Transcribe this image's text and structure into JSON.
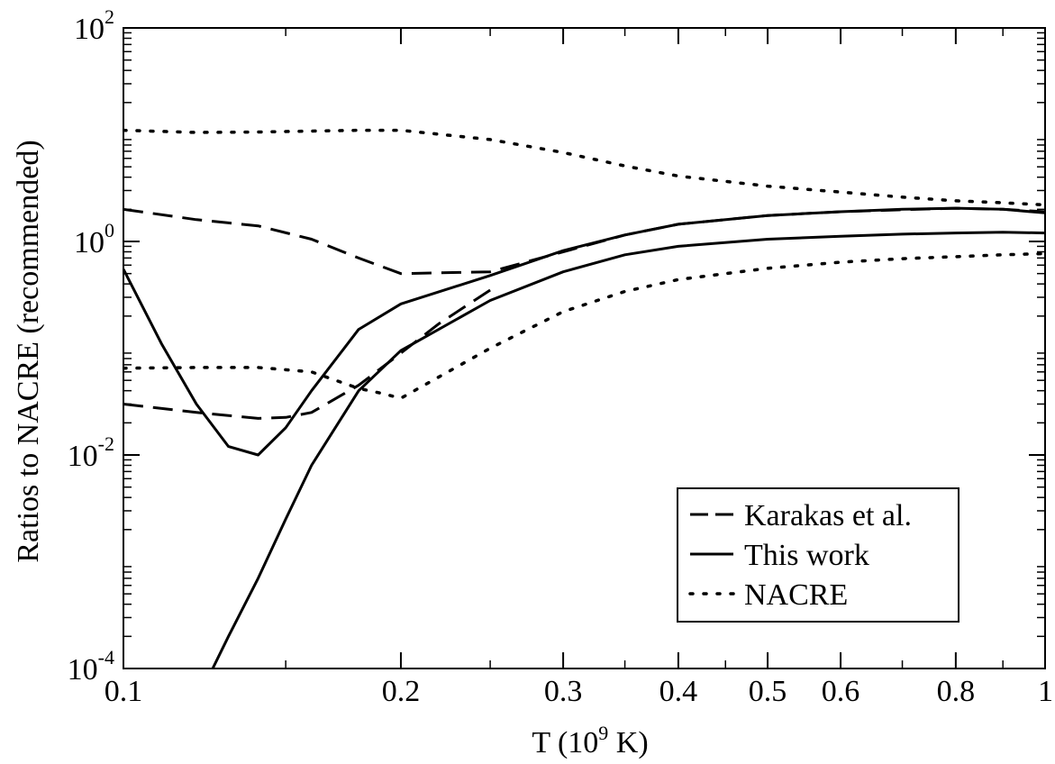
{
  "chart_data": {
    "type": "line",
    "xlabel_base": "T (10",
    "xlabel_exp": "9",
    "xlabel_tail": " K)",
    "ylabel": "Ratios to NACRE (recommended)",
    "x_scale": "log",
    "y_scale": "log",
    "xlim": [
      0.1,
      1
    ],
    "ylim": [
      0.0001,
      100
    ],
    "x_ticks": [
      {
        "value": 0.1,
        "label": "0.1"
      },
      {
        "value": 0.2,
        "label": "0.2"
      },
      {
        "value": 0.3,
        "label": "0.3"
      },
      {
        "value": 0.4,
        "label": "0.4"
      },
      {
        "value": 0.5,
        "label": "0.5"
      },
      {
        "value": 0.6,
        "label": "0.6"
      },
      {
        "value": 0.8,
        "label": "0.8"
      },
      {
        "value": 1,
        "label": "1"
      }
    ],
    "y_ticks": [
      {
        "value": 0.0001,
        "base": "10",
        "exp": "-4"
      },
      {
        "value": 0.01,
        "base": "10",
        "exp": "-2"
      },
      {
        "value": 1,
        "base": "10",
        "exp": "0"
      },
      {
        "value": 100,
        "base": "10",
        "exp": "2"
      }
    ],
    "grid": false,
    "legend_position": "bottom-right",
    "legend": [
      {
        "label": "Karakas et al.",
        "style": "dashed"
      },
      {
        "label": "This work",
        "style": "solid"
      },
      {
        "label": "NACRE",
        "style": "dotted"
      }
    ],
    "series": [
      {
        "legend_index": 0,
        "style": "dashed",
        "x": [
          0.1,
          0.12,
          0.14,
          0.16,
          0.18,
          0.2,
          0.25,
          0.3,
          0.35,
          0.4,
          0.5,
          0.6,
          0.7,
          0.8,
          0.9,
          1.0
        ],
        "y": [
          2.0,
          1.6,
          1.4,
          1.05,
          0.7,
          0.5,
          0.52,
          0.8,
          1.15,
          1.45,
          1.75,
          1.9,
          1.98,
          2.05,
          2.0,
          1.9
        ]
      },
      {
        "legend_index": 0,
        "style": "dashed",
        "x": [
          0.1,
          0.12,
          0.14,
          0.15,
          0.16,
          0.18,
          0.2,
          0.22,
          0.25
        ],
        "y": [
          0.03,
          0.025,
          0.022,
          0.0225,
          0.025,
          0.045,
          0.09,
          0.17,
          0.35
        ]
      },
      {
        "legend_index": 1,
        "style": "solid",
        "x": [
          0.1,
          0.11,
          0.12,
          0.13,
          0.14,
          0.15,
          0.16,
          0.18,
          0.2,
          0.25,
          0.3,
          0.35,
          0.4,
          0.5,
          0.6,
          0.7,
          0.8,
          0.9,
          1.0
        ],
        "y": [
          0.55,
          0.11,
          0.03,
          0.012,
          0.01,
          0.018,
          0.04,
          0.15,
          0.26,
          0.48,
          0.82,
          1.15,
          1.45,
          1.75,
          1.9,
          2.0,
          2.05,
          2.0,
          1.85
        ]
      },
      {
        "legend_index": 1,
        "style": "solid",
        "x": [
          0.125,
          0.13,
          0.14,
          0.15,
          0.16,
          0.18,
          0.2,
          0.25,
          0.3,
          0.35,
          0.4,
          0.5,
          0.6,
          0.7,
          0.8,
          0.9,
          1.0
        ],
        "y": [
          0.0001,
          0.0002,
          0.0007,
          0.0025,
          0.008,
          0.04,
          0.095,
          0.28,
          0.52,
          0.75,
          0.9,
          1.05,
          1.12,
          1.17,
          1.2,
          1.22,
          1.2
        ]
      },
      {
        "legend_index": 2,
        "style": "dotted",
        "x": [
          0.1,
          0.12,
          0.14,
          0.16,
          0.18,
          0.2,
          0.25,
          0.3,
          0.35,
          0.4,
          0.5,
          0.6,
          0.7,
          0.8,
          0.9,
          1.0
        ],
        "y": [
          11,
          10.5,
          10.6,
          10.8,
          11,
          11,
          9,
          6.8,
          5.1,
          4.1,
          3.3,
          2.9,
          2.6,
          2.4,
          2.3,
          2.2
        ]
      },
      {
        "legend_index": 2,
        "style": "dotted",
        "x": [
          0.1,
          0.12,
          0.14,
          0.16,
          0.17,
          0.18,
          0.19,
          0.2,
          0.25,
          0.3,
          0.35,
          0.4,
          0.5,
          0.6,
          0.7,
          0.8,
          0.9,
          1.0
        ],
        "y": [
          0.065,
          0.066,
          0.066,
          0.06,
          0.05,
          0.042,
          0.038,
          0.034,
          0.1,
          0.22,
          0.34,
          0.44,
          0.56,
          0.64,
          0.69,
          0.72,
          0.75,
          0.77
        ]
      }
    ]
  }
}
